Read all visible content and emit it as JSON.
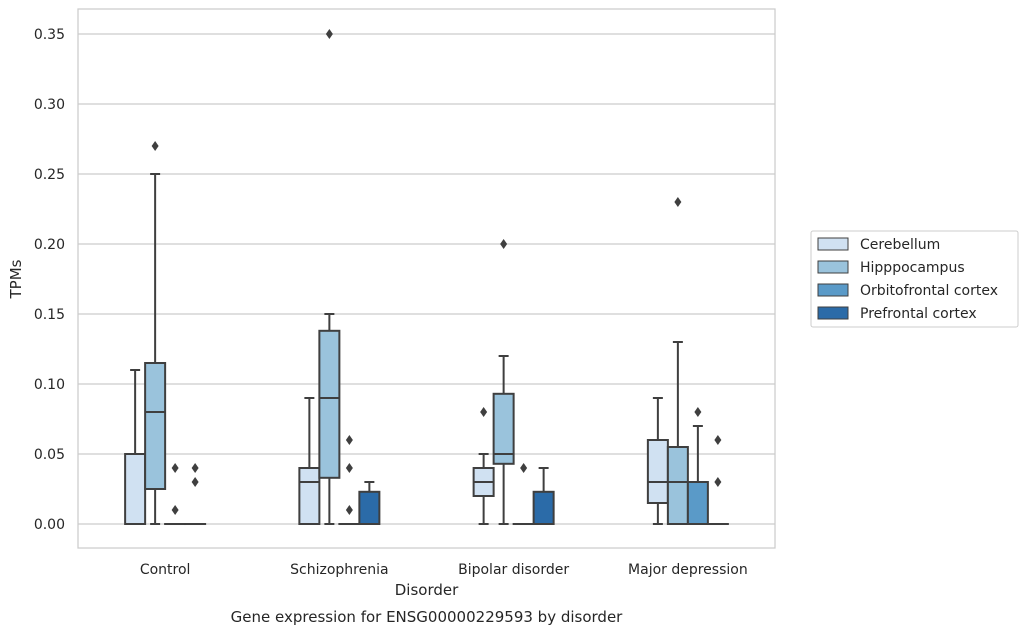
{
  "chart_data": {
    "type": "box",
    "xlabel": "Disorder",
    "ylabel": "TPMs",
    "caption": "Gene expression for ENSG00000229593 by disorder",
    "ylim": [
      -0.017,
      0.368
    ],
    "yticks": [
      "0.00",
      "0.05",
      "0.10",
      "0.15",
      "0.20",
      "0.25",
      "0.30",
      "0.35"
    ],
    "grid": "horizontal",
    "legend_position": "right",
    "categories": [
      "Control",
      "Schizophrenia",
      "Bipolar disorder",
      "Major depression"
    ],
    "series": [
      {
        "name": "Cerebellum",
        "color": "#d0e1f2",
        "boxes": [
          {
            "q1": 0.0,
            "median": 0.0,
            "q3": 0.05,
            "whisker_low": 0.0,
            "whisker_high": 0.11,
            "outliers": []
          },
          {
            "q1": 0.0,
            "median": 0.03,
            "q3": 0.04,
            "whisker_low": 0.0,
            "whisker_high": 0.09,
            "outliers": []
          },
          {
            "q1": 0.02,
            "median": 0.03,
            "q3": 0.04,
            "whisker_low": 0.0,
            "whisker_high": 0.05,
            "outliers": [
              0.08
            ]
          },
          {
            "q1": 0.015,
            "median": 0.03,
            "q3": 0.06,
            "whisker_low": 0.0,
            "whisker_high": 0.09,
            "outliers": []
          }
        ]
      },
      {
        "name": "Hipppocampus",
        "color": "#9ac3dc",
        "boxes": [
          {
            "q1": 0.025,
            "median": 0.08,
            "q3": 0.115,
            "whisker_low": 0.0,
            "whisker_high": 0.25,
            "outliers": [
              0.27
            ]
          },
          {
            "q1": 0.033,
            "median": 0.09,
            "q3": 0.138,
            "whisker_low": 0.0,
            "whisker_high": 0.15,
            "outliers": [
              0.35
            ]
          },
          {
            "q1": 0.043,
            "median": 0.05,
            "q3": 0.093,
            "whisker_low": 0.0,
            "whisker_high": 0.12,
            "outliers": [
              0.2
            ]
          },
          {
            "q1": 0.0,
            "median": 0.03,
            "q3": 0.055,
            "whisker_low": 0.0,
            "whisker_high": 0.13,
            "outliers": [
              0.23
            ]
          }
        ]
      },
      {
        "name": "Orbitofrontal cortex",
        "color": "#5a9ac8",
        "boxes": [
          {
            "q1": 0.0,
            "median": 0.0,
            "q3": 0.0,
            "whisker_low": 0.0,
            "whisker_high": 0.0,
            "outliers": [
              0.01,
              0.04
            ]
          },
          {
            "q1": 0.0,
            "median": 0.0,
            "q3": 0.0,
            "whisker_low": 0.0,
            "whisker_high": 0.0,
            "outliers": [
              0.01,
              0.04,
              0.06
            ]
          },
          {
            "q1": 0.0,
            "median": 0.0,
            "q3": 0.0,
            "whisker_low": 0.0,
            "whisker_high": 0.0,
            "outliers": [
              0.04
            ]
          },
          {
            "q1": 0.0,
            "median": 0.0,
            "q3": 0.03,
            "whisker_low": 0.0,
            "whisker_high": 0.07,
            "outliers": [
              0.08
            ]
          }
        ]
      },
      {
        "name": "Prefrontal cortex",
        "color": "#2b6ba8",
        "boxes": [
          {
            "q1": 0.0,
            "median": 0.0,
            "q3": 0.0,
            "whisker_low": 0.0,
            "whisker_high": 0.0,
            "outliers": [
              0.03,
              0.04
            ]
          },
          {
            "q1": 0.0,
            "median": 0.0,
            "q3": 0.023,
            "whisker_low": 0.0,
            "whisker_high": 0.03,
            "outliers": []
          },
          {
            "q1": 0.0,
            "median": 0.0,
            "q3": 0.023,
            "whisker_low": 0.0,
            "whisker_high": 0.04,
            "outliers": []
          },
          {
            "q1": 0.0,
            "median": 0.0,
            "q3": 0.0,
            "whisker_low": 0.0,
            "whisker_high": 0.0,
            "outliers": [
              0.03,
              0.06
            ]
          }
        ]
      }
    ]
  }
}
